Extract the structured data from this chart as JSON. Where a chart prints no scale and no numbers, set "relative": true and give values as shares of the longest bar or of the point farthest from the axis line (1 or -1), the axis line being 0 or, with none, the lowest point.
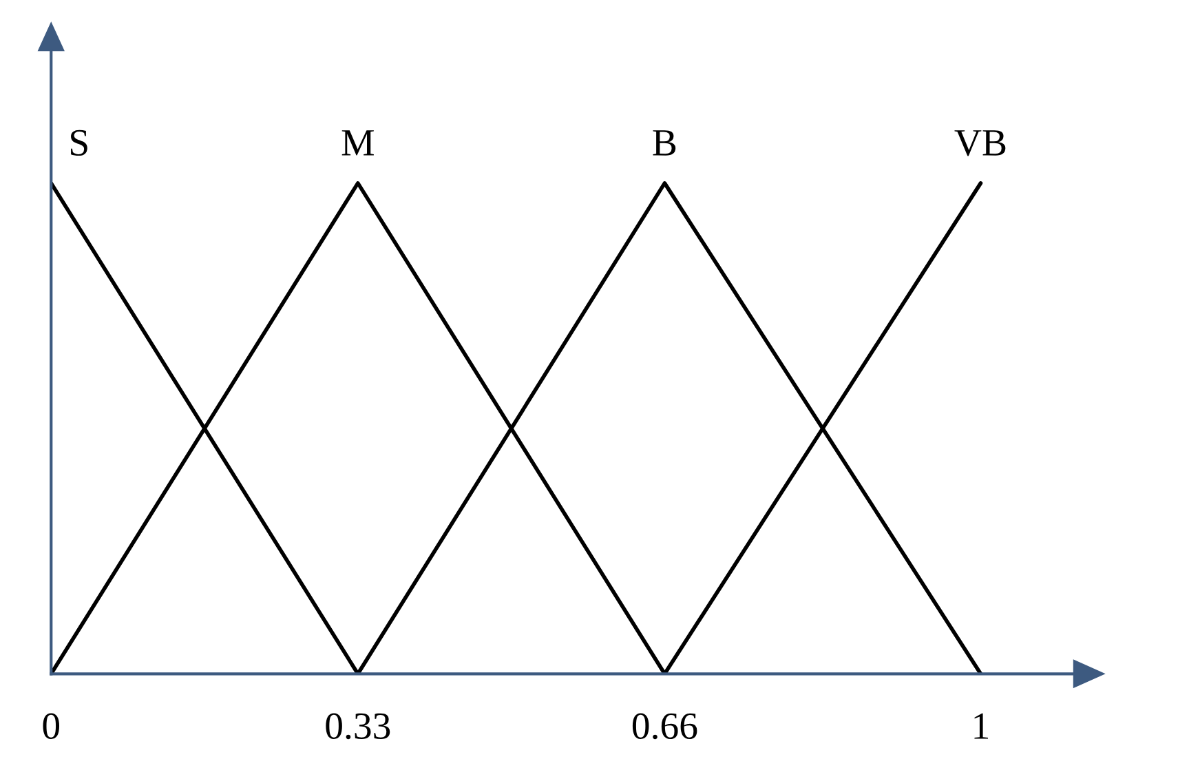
{
  "chart_data": {
    "type": "line",
    "relative": true,
    "xlim": [
      0,
      1.1
    ],
    "xticks": [
      0,
      0.33,
      0.66,
      1
    ],
    "grid": false,
    "legend": false,
    "marker": "none",
    "line_style": "solid",
    "series": [
      {
        "name": "S",
        "color": "#000000",
        "x": [
          0,
          0.33
        ],
        "values": [
          1,
          0
        ]
      },
      {
        "name": "M",
        "color": "#000000",
        "x": [
          0,
          0.33,
          0.66
        ],
        "values": [
          0,
          1,
          0
        ]
      },
      {
        "name": "B",
        "color": "#000000",
        "x": [
          0.33,
          0.66,
          1
        ],
        "values": [
          0,
          1,
          0
        ]
      },
      {
        "name": "VB",
        "color": "#000000",
        "x": [
          0.66,
          1
        ],
        "values": [
          0,
          1
        ]
      }
    ]
  }
}
